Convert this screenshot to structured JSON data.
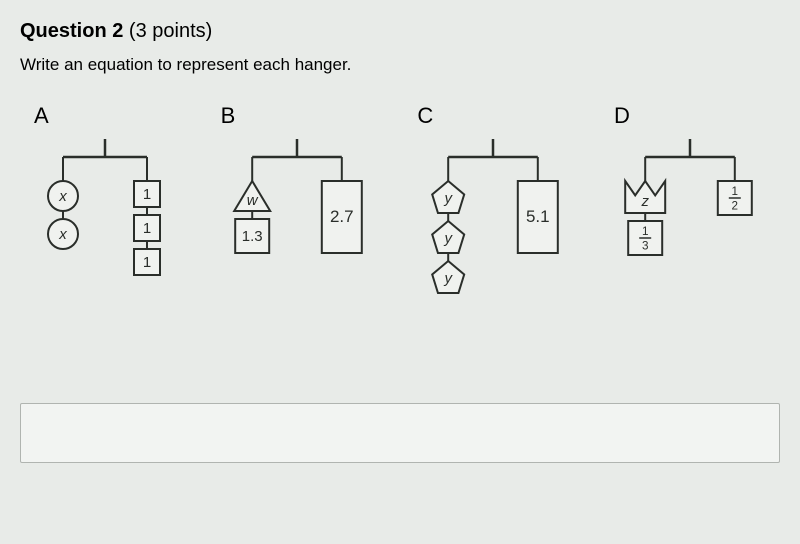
{
  "question": {
    "title_prefix": "Question 2",
    "points_text": " (3 points)",
    "prompt": "Write an equation to represent each hanger."
  },
  "style": {
    "stroke": "#2a2e2a",
    "stroke_width": 2,
    "shape_fill": "#f0f2ef",
    "font_size_label": 22,
    "font_size_shape": 15
  },
  "hangers": {
    "A": {
      "label": "A",
      "left": [
        {
          "shape": "circle",
          "text": "x",
          "italic": true
        },
        {
          "shape": "circle",
          "text": "x",
          "italic": true
        }
      ],
      "right": [
        {
          "shape": "square",
          "text": "1"
        },
        {
          "shape": "square",
          "text": "1"
        },
        {
          "shape": "square",
          "text": "1"
        }
      ]
    },
    "B": {
      "label": "B",
      "left": [
        {
          "shape": "triangle",
          "text": "w",
          "italic": true
        },
        {
          "shape": "square",
          "text": "1.3"
        }
      ],
      "right": [
        {
          "shape": "tallrect",
          "text": "2.7"
        }
      ]
    },
    "C": {
      "label": "C",
      "left": [
        {
          "shape": "pentagon",
          "text": "y",
          "italic": true
        },
        {
          "shape": "pentagon",
          "text": "y",
          "italic": true
        },
        {
          "shape": "pentagon",
          "text": "y",
          "italic": true
        }
      ],
      "right": [
        {
          "shape": "tallrect",
          "text": "5.1"
        }
      ]
    },
    "D": {
      "label": "D",
      "left": [
        {
          "shape": "crown",
          "text": "z",
          "italic": true
        },
        {
          "shape": "square",
          "text": "1/3",
          "fraction": true
        }
      ],
      "right": [
        {
          "shape": "square",
          "text": "1/2",
          "fraction": true
        }
      ]
    }
  }
}
